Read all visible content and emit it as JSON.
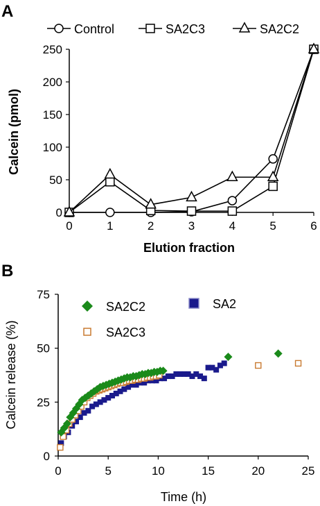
{
  "chart_data": [
    {
      "panel": "A",
      "type": "line",
      "xlabel": "Elution fraction",
      "ylabel": "Calcein (pmol)",
      "xlim": [
        0,
        6
      ],
      "ylim": [
        0,
        250
      ],
      "xticks": [
        0,
        1,
        2,
        3,
        4,
        5,
        6
      ],
      "yticks": [
        0,
        50,
        100,
        150,
        200,
        250
      ],
      "legend_position": "top",
      "series": [
        {
          "name": "Control",
          "marker": "circle",
          "x": [
            0,
            1,
            2,
            3,
            4,
            5,
            6
          ],
          "values": [
            0,
            0,
            0,
            1,
            18,
            82,
            250
          ]
        },
        {
          "name": "SA2C3",
          "marker": "square",
          "x": [
            0,
            1,
            2,
            3,
            4,
            5,
            6
          ],
          "values": [
            0,
            47,
            3,
            2,
            2,
            40,
            250
          ]
        },
        {
          "name": "SA2C2",
          "marker": "triangle",
          "x": [
            0,
            1,
            2,
            3,
            4,
            5,
            6
          ],
          "values": [
            0,
            58,
            12,
            23,
            54,
            54,
            250
          ]
        }
      ]
    },
    {
      "panel": "B",
      "type": "scatter",
      "xlabel": "Time (h)",
      "ylabel": "Calcein release (%)",
      "xlim": [
        0,
        25
      ],
      "ylim": [
        0,
        75
      ],
      "xticks": [
        0,
        5,
        10,
        15,
        20,
        25
      ],
      "yticks": [
        0,
        25,
        50,
        75
      ],
      "legend_position": "top",
      "series": [
        {
          "name": "SA2C2",
          "color": "#1a8a1a",
          "marker": "diamond",
          "x": [
            0.3,
            0.6,
            0.9,
            1.2,
            1.5,
            1.8,
            2.1,
            2.4,
            2.7,
            3.0,
            3.3,
            3.6,
            3.9,
            4.2,
            4.5,
            4.8,
            5.1,
            5.4,
            5.7,
            6.0,
            6.3,
            6.6,
            6.9,
            7.2,
            7.5,
            7.8,
            8.1,
            8.4,
            8.7,
            9.0,
            9.3,
            9.6,
            9.9,
            10.2,
            10.5,
            17.0,
            22.0
          ],
          "values": [
            11,
            13,
            15,
            18,
            20,
            22,
            24,
            26,
            27,
            28,
            29,
            30,
            31,
            32,
            32.5,
            33,
            33.5,
            34,
            34.5,
            35,
            35.5,
            36,
            36.5,
            36.5,
            37,
            37,
            37.5,
            38,
            38,
            38.5,
            38.5,
            39,
            39,
            39.5,
            39.5,
            46,
            47.5
          ]
        },
        {
          "name": "SA2C3",
          "color": "#c87a30",
          "marker": "open-square",
          "x": [
            0.2,
            0.5,
            0.8,
            1.1,
            1.4,
            1.7,
            2.0,
            2.3,
            2.6,
            2.9,
            3.2,
            3.5,
            3.8,
            4.1,
            4.4,
            4.7,
            5.0,
            5.3,
            5.6,
            5.9,
            6.2,
            6.5,
            6.8,
            7.1,
            7.4,
            7.7,
            8.0,
            8.3,
            8.6,
            8.9,
            9.2,
            9.5,
            9.8,
            10.1,
            20.0,
            24.0
          ],
          "values": [
            4,
            9,
            12,
            15,
            17,
            19,
            21,
            23,
            25,
            27,
            28,
            29,
            30,
            30.5,
            31,
            31.5,
            32,
            32.5,
            33,
            33.5,
            34,
            34,
            34.5,
            35,
            35,
            35.5,
            35.5,
            36,
            36,
            36.5,
            36.5,
            37,
            37,
            37.5,
            42,
            43
          ]
        },
        {
          "name": "SA2",
          "color": "#1a1a8c",
          "marker": "filled-square",
          "x": [
            0.3,
            0.6,
            1.0,
            1.4,
            1.8,
            2.2,
            2.6,
            3.0,
            3.4,
            3.8,
            4.2,
            4.6,
            5.0,
            5.4,
            5.8,
            6.2,
            6.6,
            7.0,
            7.4,
            7.8,
            8.2,
            8.6,
            9.0,
            9.4,
            9.8,
            10.2,
            10.6,
            11.0,
            11.4,
            11.8,
            12.2,
            12.6,
            13.0,
            13.4,
            13.8,
            14.2,
            14.6,
            15.0,
            15.4,
            15.8,
            16.2,
            16.6
          ],
          "values": [
            6,
            9,
            11,
            14,
            16,
            18,
            20,
            21,
            23,
            24,
            25,
            26,
            27,
            28,
            29,
            30,
            31,
            32,
            33,
            33,
            34,
            34,
            35,
            35,
            35,
            36,
            36,
            37,
            37,
            38,
            38,
            38,
            38,
            37,
            38,
            37,
            36,
            41,
            41,
            40,
            42,
            43
          ]
        }
      ]
    }
  ],
  "labels": {
    "panel_a": "A",
    "panel_b": "B"
  }
}
